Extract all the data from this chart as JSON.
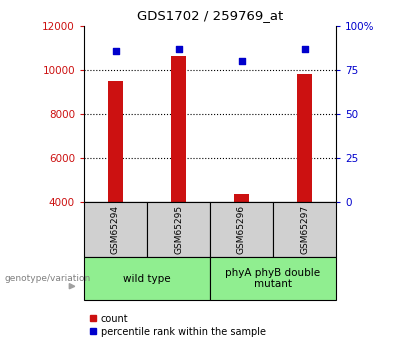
{
  "title": "GDS1702 / 259769_at",
  "samples": [
    "GSM65294",
    "GSM65295",
    "GSM65296",
    "GSM65297"
  ],
  "counts": [
    9500,
    10650,
    4350,
    9800
  ],
  "percentiles": [
    86,
    87,
    80,
    87
  ],
  "ylim_left": [
    4000,
    12000
  ],
  "ylim_right": [
    0,
    100
  ],
  "yticks_left": [
    4000,
    6000,
    8000,
    10000,
    12000
  ],
  "yticks_right": [
    0,
    25,
    50,
    75,
    100
  ],
  "bar_color": "#cc1111",
  "dot_color": "#0000cc",
  "grid_color": "#000000",
  "wild_type_label": "wild type",
  "mutant_label": "phyA phyB double\nmutant",
  "genotype_label": "genotype/variation",
  "legend_count": "count",
  "legend_pct": "percentile rank within the sample",
  "left_tick_color": "#cc1111",
  "right_tick_color": "#0000cc",
  "sample_box_color": "#d0d0d0",
  "geno_box_color": "#90EE90",
  "bar_width": 0.25
}
